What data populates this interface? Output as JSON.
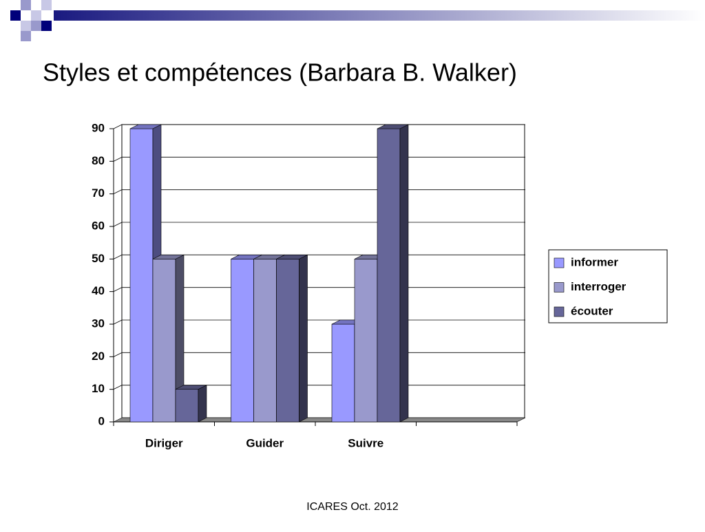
{
  "chart_data": {
    "type": "bar3d",
    "title": "Styles et compétences (Barbara B. Walker)",
    "categories": [
      "Diriger",
      "Guider",
      "Suivre",
      null
    ],
    "series": [
      {
        "name": "informer",
        "color": "#9999ff",
        "values": [
          90,
          50,
          30,
          null
        ]
      },
      {
        "name": "interroger",
        "color": "#9999cc",
        "values": [
          50,
          50,
          50,
          null
        ]
      },
      {
        "name": "écouter",
        "color": "#666699",
        "values": [
          10,
          50,
          90,
          null
        ]
      }
    ],
    "ylim": [
      0,
      90
    ],
    "yticks": [
      0,
      10,
      20,
      30,
      40,
      50,
      60,
      70,
      80,
      90
    ],
    "grid": true,
    "legend": "right"
  },
  "footer": "ICARES Oct. 2012"
}
